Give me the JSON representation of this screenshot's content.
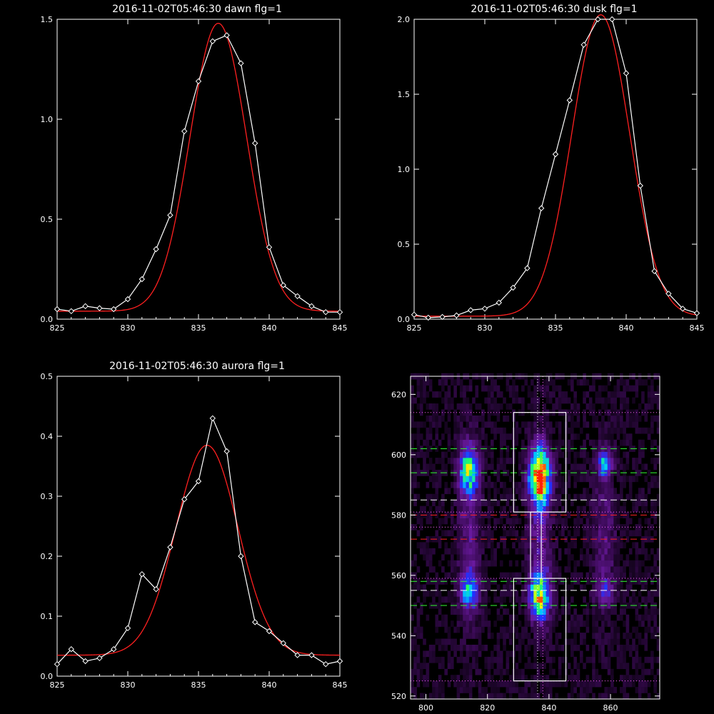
{
  "chart_data": [
    {
      "type": "line",
      "title": "2016-11-02T05:46:30 dawn flg=1",
      "xlim": [
        825,
        845
      ],
      "ylim": [
        0,
        1.5
      ],
      "xticks": [
        825,
        830,
        835,
        840,
        845
      ],
      "yticks": [
        0.0,
        0.5,
        1.0,
        1.5
      ],
      "ytick_labels": [
        "0.0",
        "0.5",
        "1.0",
        "1.5"
      ],
      "series": [
        {
          "style": "white line with diamonds",
          "color": "#ffffff",
          "x": [
            825,
            826,
            827,
            828,
            829,
            830,
            831,
            832,
            833,
            834,
            835,
            836,
            837,
            838,
            839,
            840,
            841,
            842,
            843,
            844,
            845
          ],
          "y": [
            0.05,
            0.04,
            0.065,
            0.055,
            0.05,
            0.1,
            0.2,
            0.35,
            0.52,
            0.94,
            1.19,
            1.39,
            1.42,
            1.28,
            0.88,
            0.36,
            0.17,
            0.115,
            0.065,
            0.035,
            0.035
          ]
        },
        {
          "style": "red gaussian fit",
          "color": "#ff2020",
          "fit": {
            "amplitude": 1.44,
            "center": 836.4,
            "sigma": 2.0,
            "offset": 0.04,
            "x_range": [
              825,
              845
            ]
          }
        }
      ]
    },
    {
      "type": "line",
      "title": "2016-11-02T05:46:30 dusk flg=1",
      "xlim": [
        825,
        845
      ],
      "ylim": [
        0,
        2.0
      ],
      "xticks": [
        825,
        830,
        835,
        840,
        845
      ],
      "yticks": [
        0.0,
        0.5,
        1.0,
        1.5,
        2.0
      ],
      "ytick_labels": [
        "0.0",
        "0.5",
        "1.0",
        "1.5",
        "2.0"
      ],
      "series": [
        {
          "style": "white line with diamonds",
          "color": "#ffffff",
          "x": [
            825,
            826,
            827,
            828,
            829,
            830,
            831,
            832,
            833,
            834,
            835,
            836,
            837,
            838,
            839,
            840,
            841,
            842,
            843,
            844,
            845
          ],
          "y": [
            0.03,
            0.01,
            0.015,
            0.025,
            0.06,
            0.07,
            0.11,
            0.21,
            0.34,
            0.74,
            1.1,
            1.46,
            1.83,
            2.0,
            2.0,
            1.64,
            0.89,
            0.32,
            0.17,
            0.07,
            0.04
          ]
        },
        {
          "style": "red gaussian fit",
          "color": "#ff2020",
          "fit": {
            "amplitude": 2.01,
            "center": 838.2,
            "sigma": 2.05,
            "offset": 0.02,
            "x_range": [
              825,
              845
            ]
          }
        }
      ]
    },
    {
      "type": "line",
      "title": "2016-11-02T05:46:30 aurora flg=1",
      "xlim": [
        825,
        845
      ],
      "ylim": [
        0,
        0.5
      ],
      "xticks": [
        825,
        830,
        835,
        840,
        845
      ],
      "yticks": [
        0.0,
        0.1,
        0.2,
        0.3,
        0.4,
        0.5
      ],
      "ytick_labels": [
        "0.0",
        "0.1",
        "0.2",
        "0.3",
        "0.4",
        "0.5"
      ],
      "series": [
        {
          "style": "white line with diamonds",
          "color": "#ffffff",
          "x": [
            825,
            826,
            827,
            828,
            829,
            830,
            831,
            832,
            833,
            834,
            835,
            836,
            837,
            838,
            839,
            840,
            841,
            842,
            843,
            844,
            845
          ],
          "y": [
            0.02,
            0.045,
            0.025,
            0.03,
            0.045,
            0.08,
            0.17,
            0.145,
            0.215,
            0.295,
            0.325,
            0.43,
            0.375,
            0.2,
            0.09,
            0.075,
            0.055,
            0.035,
            0.035,
            0.02,
            0.025
          ]
        },
        {
          "style": "red gaussian fit",
          "color": "#ff2020",
          "fit": {
            "amplitude": 0.35,
            "center": 835.6,
            "sigma": 2.2,
            "offset": 0.035,
            "x_range": [
              825,
              845
            ]
          }
        }
      ]
    },
    {
      "type": "heatmap",
      "title": "",
      "xlim": [
        795,
        876
      ],
      "ylim": [
        519,
        626
      ],
      "xticks": [
        800,
        820,
        840,
        860
      ],
      "yticks": [
        520,
        540,
        560,
        580,
        600,
        620
      ],
      "colormap": [
        "#000000",
        "#3a0a55",
        "#6a1aa0",
        "#2030ff",
        "#00c8ff",
        "#20ff60",
        "#ffff00",
        "#ff2000"
      ],
      "blobs": [
        {
          "x": 814,
          "y": 595,
          "sx": 2.0,
          "sy": 5,
          "peak": 0.65
        },
        {
          "x": 837,
          "y": 593,
          "sx": 2.2,
          "sy": 6,
          "peak": 1.0
        },
        {
          "x": 858,
          "y": 597,
          "sx": 1.6,
          "sy": 3,
          "peak": 0.45
        },
        {
          "x": 814,
          "y": 555,
          "sx": 2.0,
          "sy": 4,
          "peak": 0.45
        },
        {
          "x": 837,
          "y": 553,
          "sx": 2.2,
          "sy": 5,
          "peak": 0.7
        },
        {
          "x": 858,
          "y": 555,
          "sx": 2.0,
          "sy": 3,
          "peak": 0.25
        },
        {
          "x": 814,
          "y": 575,
          "sx": 2.5,
          "sy": 20,
          "peak": 0.18
        },
        {
          "x": 837,
          "y": 575,
          "sx": 2.5,
          "sy": 20,
          "peak": 0.22
        },
        {
          "x": 858,
          "y": 575,
          "sx": 2.5,
          "sy": 20,
          "peak": 0.15
        }
      ],
      "boxes": [
        {
          "x0": 828.5,
          "x1": 845.5,
          "y0": 581,
          "y1": 614,
          "color": "#ffffff"
        },
        {
          "x0": 828.5,
          "x1": 845.5,
          "y0": 525,
          "y1": 559,
          "color": "#ffffff"
        },
        {
          "x0": 834,
          "x1": 837.5,
          "y0": 559,
          "y1": 581,
          "color": "#ffffff"
        }
      ],
      "hlines": [
        {
          "y": 614,
          "color": "#ff60ff",
          "style": "dotted"
        },
        {
          "y": 602,
          "color": "#30ff30",
          "style": "dashed"
        },
        {
          "y": 594,
          "color": "#30ff30",
          "style": "dashed"
        },
        {
          "y": 585,
          "color": "#ffffff",
          "style": "dashed"
        },
        {
          "y": 581,
          "color": "#ff60ff",
          "style": "dotted"
        },
        {
          "y": 580,
          "color": "#ff2020",
          "style": "dashed"
        },
        {
          "y": 576,
          "color": "#ff60ff",
          "style": "dotted"
        },
        {
          "y": 572,
          "color": "#ff2020",
          "style": "dashed"
        },
        {
          "y": 559,
          "color": "#ff60ff",
          "style": "dotted"
        },
        {
          "y": 558,
          "color": "#30ff30",
          "style": "dashed"
        },
        {
          "y": 555,
          "color": "#ffffff",
          "style": "dashed"
        },
        {
          "y": 550,
          "color": "#30ff30",
          "style": "dashed"
        },
        {
          "y": 525,
          "color": "#ff60ff",
          "style": "dotted"
        }
      ],
      "vlines": [
        {
          "x": 836.3,
          "color": "#ffffff",
          "style": "dotted"
        },
        {
          "x": 838.0,
          "color": "#ff60ff",
          "style": "dotted"
        }
      ]
    }
  ]
}
